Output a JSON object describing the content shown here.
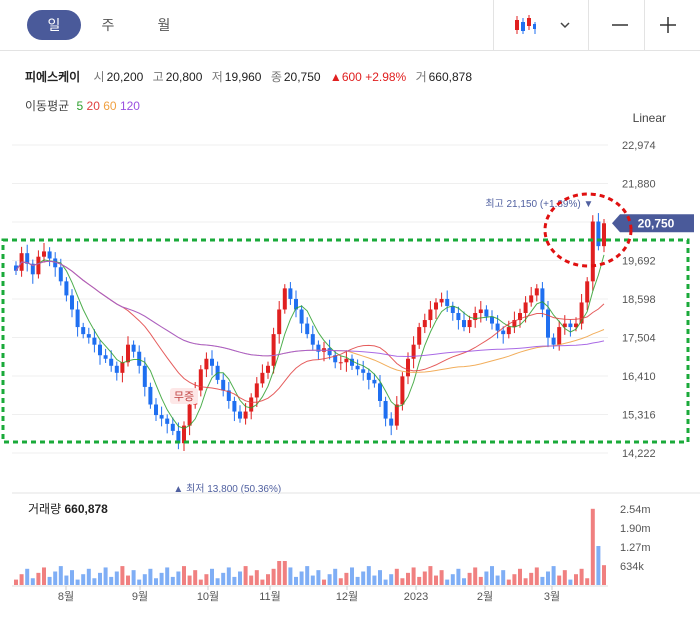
{
  "tabs": {
    "day": "일",
    "week": "주",
    "month": "월"
  },
  "icons": {
    "chart_type": "candlestick-icon",
    "dropdown": "chevron-down-icon",
    "zoom_out": "minus-icon",
    "zoom_in": "plus-icon"
  },
  "stock": {
    "name": "피에스케이",
    "open_label": "시",
    "open": "20,200",
    "high_label": "고",
    "high": "20,800",
    "low_label": "저",
    "low": "19,960",
    "close_label": "종",
    "close": "20,750",
    "change_arrow": "▲",
    "change": "600",
    "change_pct": "+2.98%",
    "volume_label": "거",
    "volume": "660,878"
  },
  "moving_average": {
    "label": "이동평균",
    "periods": [
      {
        "value": "5",
        "color": "#2ea02e"
      },
      {
        "value": "20",
        "color": "#e04040"
      },
      {
        "value": "60",
        "color": "#f0a040"
      },
      {
        "value": "120",
        "color": "#9a50e0"
      }
    ]
  },
  "scale_mode": "Linear",
  "price_axis": {
    "ticks": [
      "22,974",
      "21,880",
      "20,786",
      "19,692",
      "18,598",
      "17,504",
      "16,410",
      "15,316",
      "14,222"
    ]
  },
  "current_price_tag": "20,750",
  "annotations": {
    "high": {
      "label": "최고",
      "value": "21,150",
      "pct": "(+1.89%)",
      "arrow": "▼"
    },
    "low": {
      "label": "최저",
      "value": "13,800",
      "pct": "(50.36%)",
      "arrow": "▲"
    },
    "event_badge": "무증"
  },
  "volume": {
    "title": "거래량",
    "value": "660,878",
    "ticks": [
      "2.54m",
      "1.90m",
      "1.27m",
      "634k"
    ]
  },
  "date_axis": {
    "ticks": [
      "8월",
      "9월",
      "10월",
      "11월",
      "12월",
      "2023",
      "2월",
      "3월"
    ]
  },
  "colors": {
    "up": "#e02020",
    "down": "#1f6ff0",
    "highlight_box": "#1aaa3a",
    "highlight_circle": "#e01010",
    "price_tag": "#4a5a9a"
  },
  "chart_data": {
    "type": "candlestick",
    "y_range": [
      14222,
      22974
    ],
    "approx_close_series": [
      19400,
      19900,
      19600,
      19300,
      19800,
      19950,
      19750,
      19500,
      19100,
      18700,
      18300,
      17800,
      17600,
      17500,
      17300,
      17000,
      16900,
      16700,
      16500,
      16800,
      17300,
      17100,
      16700,
      16100,
      15600,
      15300,
      15200,
      15050,
      14850,
      14500,
      15000,
      15600,
      16000,
      16600,
      16900,
      16700,
      16300,
      16000,
      15700,
      15400,
      15200,
      15400,
      15800,
      16200,
      16500,
      16700,
      17600,
      18300,
      18900,
      18600,
      18300,
      17900,
      17600,
      17300,
      17100,
      17200,
      17000,
      16800,
      16800,
      16900,
      16700,
      16600,
      16500,
      16300,
      16200,
      15700,
      15200,
      15000,
      15600,
      16400,
      16900,
      17300,
      17800,
      18000,
      18300,
      18500,
      18600,
      18400,
      18200,
      18000,
      17800,
      18000,
      18200,
      18300,
      18100,
      17900,
      17700,
      17600,
      17800,
      18000,
      18200,
      18500,
      18700,
      18900,
      18300,
      17500,
      17300,
      17800,
      17900,
      17800,
      17900,
      18500,
      19100,
      20800,
      20100,
      20750
    ],
    "ma_periods": [
      5,
      20,
      60,
      120
    ],
    "high": {
      "value": 21150,
      "pct": "+1.89%"
    },
    "low": {
      "value": 13800,
      "pct": "50.36%"
    },
    "last": {
      "close": 20750,
      "volume": 660878
    },
    "volume_ticks": [
      "634k",
      "1.27m",
      "1.90m",
      "2.54m"
    ],
    "x_ticks": [
      "8월",
      "9월",
      "10월",
      "11월",
      "12월",
      "2023",
      "2월",
      "3월"
    ]
  }
}
